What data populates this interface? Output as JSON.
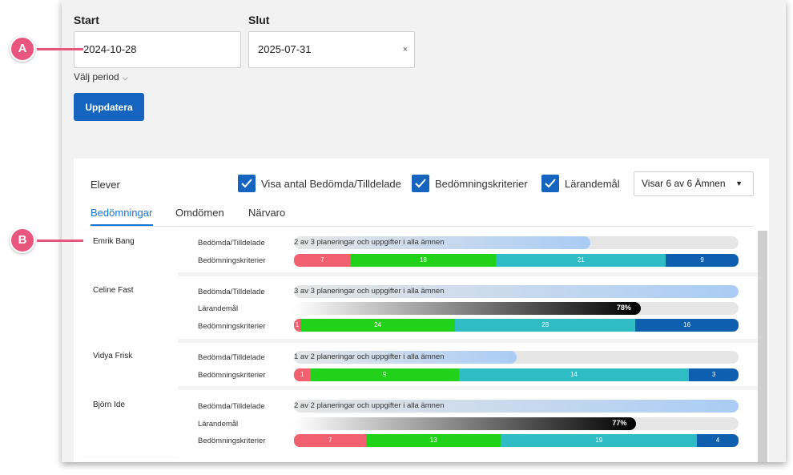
{
  "filters": {
    "start_label": "Start",
    "start_value": "2024-10-28",
    "end_label": "Slut",
    "end_value": "2025-07-31",
    "clear_symbol": "×",
    "period_label": "Välj period",
    "update_label": "Uppdatera"
  },
  "panel": {
    "title": "Elever",
    "checkboxes": [
      {
        "label": "Visa antal Bedömda/Tilldelade",
        "checked": true
      },
      {
        "label": "Bedömningskriterier",
        "checked": true
      },
      {
        "label": "Lärandemål",
        "checked": true
      }
    ],
    "subject_select": "Visar 6 av 6 Ämnen",
    "tabs": [
      {
        "label": "Bedömningar",
        "active": true
      },
      {
        "label": "Omdömen",
        "active": false
      },
      {
        "label": "Närvaro",
        "active": false
      }
    ]
  },
  "row_labels": {
    "assessed": "Bedömda/Tilldelade",
    "goals": "Lärandemål",
    "criteria": "Bedömningskriterier"
  },
  "segment_colors": [
    "#f0606e",
    "#22d11a",
    "#2fbcc4",
    "#0e5fae"
  ],
  "students": [
    {
      "name": "Emrik Bang",
      "assessed_text": "2 av 3 planeringar och uppgifter i alla ämnen",
      "assessed_fraction": 0.667,
      "goals_percent": null,
      "criteria": [
        7,
        18,
        21,
        9
      ]
    },
    {
      "name": "Celine Fast",
      "assessed_text": "3 av 3 planeringar och uppgifter i alla ämnen",
      "assessed_fraction": 1.0,
      "goals_percent": "78%",
      "goals_fraction": 0.78,
      "criteria": [
        1,
        24,
        28,
        16
      ]
    },
    {
      "name": "Vidya Frisk",
      "assessed_text": "1 av 2 planeringar och uppgifter i alla ämnen",
      "assessed_fraction": 0.5,
      "goals_percent": null,
      "criteria": [
        1,
        9,
        14,
        3
      ]
    },
    {
      "name": "Björn Ide",
      "assessed_text": "2 av 2 planeringar och uppgifter i alla ämnen",
      "assessed_fraction": 1.0,
      "goals_percent": "77%",
      "goals_fraction": 0.77,
      "criteria": [
        7,
        13,
        19,
        4
      ]
    }
  ],
  "callouts": {
    "a": "A",
    "b": "B"
  }
}
